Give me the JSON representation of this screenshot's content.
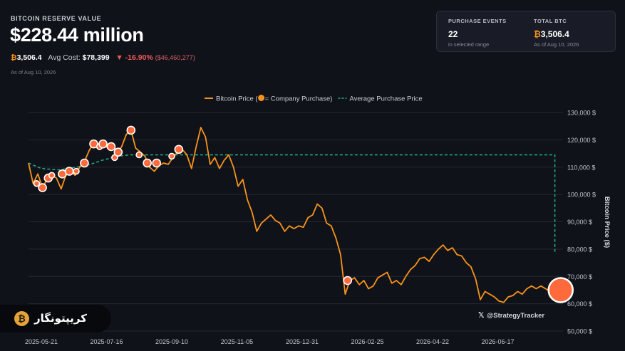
{
  "header": {
    "label": "BITCOIN RESERVE VALUE",
    "value": "$228.44 million",
    "btc_symbol": "₿",
    "btc_amount": "3,506.4",
    "avg_cost_label": "Avg Cost:",
    "avg_cost_value": "$78,399",
    "change_arrow": "▼",
    "change_pct": "-16.90%",
    "change_abs": "($46,460,277)",
    "as_of": "As of Aug 10, 2026"
  },
  "summary_card": {
    "purchase_events_label": "PURCHASE EVENTS",
    "purchase_events_value": "22",
    "purchase_events_sub": "in selected range",
    "total_btc_label": "TOTAL BTC",
    "total_btc_symbol": "₿",
    "total_btc_value": "3,506.4",
    "total_btc_sub": "As of Aug 10, 2026"
  },
  "watermark": "@StrategyTracker",
  "brand_badge": "کریپتونگار",
  "colors": {
    "background": "#10121a",
    "price_line": "#f7931a",
    "avg_line": "#20b48a",
    "marker": "#ff6a3d",
    "negative": "#ef5a5a"
  },
  "chart_data": {
    "type": "line",
    "legend": {
      "placement": "top-center",
      "price_label": "Bitcoin Price (",
      "price_label_suffix": " = Company Purchase)",
      "avg_label": "Average Purchase Price"
    },
    "ylabel": "Bitcoin Price ($)",
    "ylim": [
      50000,
      130000
    ],
    "y_ticks": [
      {
        "value": 130000,
        "label": "130,000 $"
      },
      {
        "value": 120000,
        "label": "120,000 $"
      },
      {
        "value": 110000,
        "label": "110,000 $"
      },
      {
        "value": 100000,
        "label": "100,000 $"
      },
      {
        "value": 90000,
        "label": "90,000 $"
      },
      {
        "value": 80000,
        "label": "80,000 $"
      },
      {
        "value": 70000,
        "label": "70,000 $"
      },
      {
        "value": 60000,
        "label": "60,000 $"
      },
      {
        "value": 50000,
        "label": "50,000 $"
      }
    ],
    "x_range": [
      "2025-05-10",
      "2026-08-12"
    ],
    "x_ticks": [
      "2025-05-21",
      "2025-07-16",
      "2025-09-10",
      "2025-11-05",
      "2025-12-31",
      "2026-02-25",
      "2026-04-22",
      "2026-06-17"
    ],
    "series": [
      {
        "values": [
          [
            "2025-05-10",
            111500
          ],
          [
            "2025-05-14",
            104000
          ],
          [
            "2025-05-18",
            107500
          ],
          [
            "2025-05-22",
            102500
          ],
          [
            "2025-05-26",
            105500
          ],
          [
            "2025-05-30",
            107000
          ],
          [
            "2025-06-03",
            106000
          ],
          [
            "2025-06-07",
            102000
          ],
          [
            "2025-06-11",
            107000
          ],
          [
            "2025-06-15",
            108500
          ],
          [
            "2025-06-19",
            107000
          ],
          [
            "2025-06-23",
            110000
          ],
          [
            "2025-06-27",
            112000
          ],
          [
            "2025-07-01",
            116000
          ],
          [
            "2025-07-05",
            119000
          ],
          [
            "2025-07-09",
            117500
          ],
          [
            "2025-07-13",
            118500
          ],
          [
            "2025-07-17",
            117000
          ],
          [
            "2025-07-21",
            118500
          ],
          [
            "2025-07-25",
            115000
          ],
          [
            "2025-07-29",
            117500
          ],
          [
            "2025-08-02",
            122000
          ],
          [
            "2025-08-06",
            123500
          ],
          [
            "2025-08-10",
            117000
          ],
          [
            "2025-08-14",
            115500
          ],
          [
            "2025-08-18",
            114000
          ],
          [
            "2025-08-22",
            110000
          ],
          [
            "2025-08-26",
            108500
          ],
          [
            "2025-08-30",
            110500
          ],
          [
            "2025-09-03",
            111500
          ],
          [
            "2025-09-07",
            111000
          ],
          [
            "2025-09-11",
            113500
          ],
          [
            "2025-09-15",
            115500
          ],
          [
            "2025-09-19",
            116500
          ],
          [
            "2025-09-23",
            114500
          ],
          [
            "2025-09-27",
            109500
          ],
          [
            "2025-10-01",
            117500
          ],
          [
            "2025-10-05",
            124500
          ],
          [
            "2025-10-09",
            121000
          ],
          [
            "2025-10-13",
            111000
          ],
          [
            "2025-10-17",
            113500
          ],
          [
            "2025-10-21",
            109500
          ],
          [
            "2025-10-25",
            112500
          ],
          [
            "2025-10-29",
            114500
          ],
          [
            "2025-11-02",
            110000
          ],
          [
            "2025-11-06",
            103000
          ],
          [
            "2025-11-10",
            105500
          ],
          [
            "2025-11-14",
            98000
          ],
          [
            "2025-11-18",
            93500
          ],
          [
            "2025-11-22",
            86500
          ],
          [
            "2025-11-26",
            89500
          ],
          [
            "2025-11-30",
            91000
          ],
          [
            "2025-12-04",
            92500
          ],
          [
            "2025-12-08",
            90500
          ],
          [
            "2025-12-12",
            89500
          ],
          [
            "2025-12-16",
            86500
          ],
          [
            "2025-12-20",
            88500
          ],
          [
            "2025-12-24",
            87500
          ],
          [
            "2025-12-28",
            88500
          ],
          [
            "2026-01-01",
            88000
          ],
          [
            "2026-01-05",
            91500
          ],
          [
            "2026-01-09",
            92500
          ],
          [
            "2026-01-13",
            96500
          ],
          [
            "2026-01-17",
            95000
          ],
          [
            "2026-01-21",
            89500
          ],
          [
            "2026-01-25",
            88500
          ],
          [
            "2026-01-29",
            84000
          ],
          [
            "2026-02-02",
            78000
          ],
          [
            "2026-02-06",
            63500
          ],
          [
            "2026-02-10",
            68500
          ],
          [
            "2026-02-14",
            69500
          ],
          [
            "2026-02-18",
            67000
          ],
          [
            "2026-02-22",
            68500
          ],
          [
            "2026-02-26",
            65500
          ],
          [
            "2026-03-02",
            66500
          ],
          [
            "2026-03-06",
            69500
          ],
          [
            "2026-03-10",
            70500
          ],
          [
            "2026-03-14",
            71500
          ],
          [
            "2026-03-18",
            67500
          ],
          [
            "2026-03-22",
            68500
          ],
          [
            "2026-03-26",
            67000
          ],
          [
            "2026-03-30",
            70000
          ],
          [
            "2026-04-03",
            72500
          ],
          [
            "2026-04-07",
            74000
          ],
          [
            "2026-04-11",
            76500
          ],
          [
            "2026-04-15",
            77000
          ],
          [
            "2026-04-19",
            75500
          ],
          [
            "2026-04-23",
            78000
          ],
          [
            "2026-04-27",
            80000
          ],
          [
            "2026-05-01",
            81500
          ],
          [
            "2026-05-05",
            79500
          ],
          [
            "2026-05-09",
            80500
          ],
          [
            "2026-05-13",
            78000
          ],
          [
            "2026-05-17",
            77500
          ],
          [
            "2026-05-21",
            75000
          ],
          [
            "2026-05-25",
            73500
          ],
          [
            "2026-05-29",
            69000
          ],
          [
            "2026-06-02",
            61500
          ],
          [
            "2026-06-06",
            64500
          ],
          [
            "2026-06-10",
            63500
          ],
          [
            "2026-06-14",
            62500
          ],
          [
            "2026-06-18",
            61000
          ],
          [
            "2026-06-22",
            60500
          ],
          [
            "2026-06-26",
            62500
          ],
          [
            "2026-06-30",
            63000
          ],
          [
            "2026-07-04",
            64500
          ],
          [
            "2026-07-08",
            63500
          ],
          [
            "2026-07-12",
            65500
          ],
          [
            "2026-07-16",
            66500
          ],
          [
            "2026-07-20",
            65500
          ],
          [
            "2026-07-24",
            66500
          ],
          [
            "2026-07-28",
            65500
          ],
          [
            "2026-08-01",
            64500
          ],
          [
            "2026-08-05",
            65500
          ],
          [
            "2026-08-10",
            65000
          ]
        ]
      }
    ],
    "average_purchase_price": [
      [
        "2025-05-10",
        111500
      ],
      [
        "2025-05-21",
        109500
      ],
      [
        "2025-06-05",
        109000
      ],
      [
        "2025-06-20",
        110000
      ],
      [
        "2025-07-02",
        111000
      ],
      [
        "2025-07-12",
        112500
      ],
      [
        "2025-07-26",
        114000
      ],
      [
        "2025-08-05",
        114500
      ],
      [
        "2026-08-05",
        114500
      ],
      [
        "2026-08-05",
        79000
      ]
    ],
    "purchases": [
      [
        "2025-05-17",
        104000
      ],
      [
        "2025-05-22",
        102500
      ],
      [
        "2025-05-27",
        106000
      ],
      [
        "2025-05-30",
        107000
      ],
      [
        "2025-06-08",
        107500
      ],
      [
        "2025-06-14",
        108500
      ],
      [
        "2025-06-20",
        108500
      ],
      [
        "2025-06-27",
        111500
      ],
      [
        "2025-07-05",
        118500
      ],
      [
        "2025-07-10",
        117500
      ],
      [
        "2025-07-13",
        118500
      ],
      [
        "2025-07-20",
        117500
      ],
      [
        "2025-07-23",
        113500
      ],
      [
        "2025-07-26",
        115500
      ],
      [
        "2025-08-06",
        123500
      ],
      [
        "2025-08-13",
        114500
      ],
      [
        "2025-08-20",
        111500
      ],
      [
        "2025-08-28",
        111500
      ],
      [
        "2025-09-10",
        114000
      ],
      [
        "2025-09-16",
        116500
      ],
      [
        "2026-02-08",
        68500
      ],
      [
        "2026-08-10",
        65000
      ]
    ]
  }
}
